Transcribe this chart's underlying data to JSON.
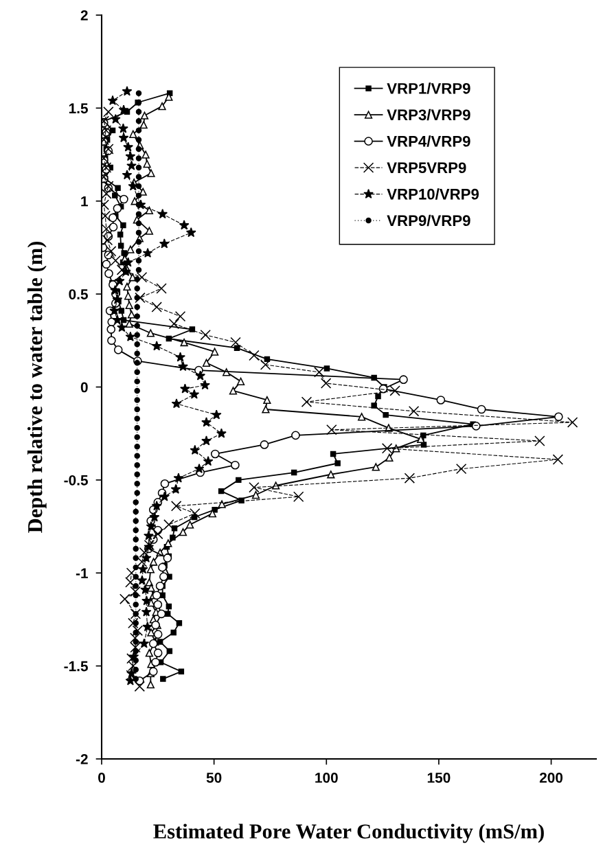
{
  "chart_data": {
    "type": "line",
    "xlabel": "Estimated Pore Water Conductivity (mS/m)",
    "ylabel": "Depth relative to water table (m)",
    "xlim": [
      0,
      220
    ],
    "xticks": [
      0,
      50,
      100,
      150,
      200
    ],
    "ylim": [
      -2,
      2
    ],
    "yticks": [
      -2,
      -1.5,
      -1,
      -0.5,
      0,
      0.5,
      1,
      1.5,
      2
    ],
    "legend": "top right",
    "series": [
      {
        "name": "VRP1/VRP9",
        "color": "#000000",
        "marker": "square",
        "line_style": "solid",
        "x": [
          30.3,
          16.1,
          11.3,
          1.1,
          4.9,
          2.5,
          2.1,
          1.6,
          3.9,
          1.6,
          7.2,
          5.9,
          8.6,
          6.2,
          9.6,
          8.3,
          8.6,
          10.0,
          9.5,
          10.8,
          4.7,
          7,
          7.5,
          8.8,
          9.8,
          40.3,
          29.9,
          60.2,
          73.6,
          100.2,
          121.2,
          125.7,
          123,
          121.2,
          126.4,
          165.2,
          143.1,
          143.3,
          103,
          105,
          85.6,
          60.9,
          53.2,
          62.2,
          50.3,
          41.3,
          32.4,
          31.6,
          29,
          29.9,
          28,
          30.1,
          27.1,
          27.1,
          29.9,
          29.4,
          34.5,
          32,
          26,
          30.2,
          26.3,
          35.4,
          27.3
        ],
        "values": [
          1.58,
          1.53,
          1.48,
          1.43,
          1.38,
          1.33,
          1.28,
          1.23,
          1.18,
          1.12,
          1.07,
          1.03,
          0.97,
          0.92,
          0.87,
          0.82,
          0.76,
          0.72,
          0.67,
          0.62,
          0.56,
          0.51,
          0.46,
          0.41,
          0.36,
          0.31,
          0.26,
          0.21,
          0.15,
          0.1,
          0.05,
          0.0,
          -0.05,
          -0.1,
          -0.15,
          -0.2,
          -0.26,
          -0.31,
          -0.36,
          -0.41,
          -0.46,
          -0.5,
          -0.56,
          -0.61,
          -0.66,
          -0.7,
          -0.76,
          -0.81,
          -0.86,
          -0.91,
          -0.96,
          -1.02,
          -1.07,
          -1.12,
          -1.18,
          -1.22,
          -1.27,
          -1.32,
          -1.37,
          -1.42,
          -1.48,
          -1.53,
          -1.57
        ]
      },
      {
        "name": "VRP3/VRP9",
        "color": "#000000",
        "marker": "triangle",
        "line_style": "solid",
        "x": [
          29.9,
          26.9,
          19.1,
          18.7,
          14.0,
          17,
          19.6,
          20.2,
          22.0,
          14.4,
          18.4,
          14.7,
          21.2,
          15.7,
          21.2,
          16.9,
          12.8,
          10.3,
          11,
          13.8,
          11.3,
          11.8,
          12.3,
          13.3,
          12.3,
          21.8,
          36.7,
          50.3,
          46.6,
          55.5,
          61.9,
          58.5,
          73.6,
          73.0,
          115.7,
          127.7,
          142,
          131,
          128,
          122,
          102,
          77.5,
          68.6,
          53.5,
          49.3,
          39.3,
          36.2,
          29.6,
          26,
          23.1,
          21.8,
          21.2,
          22,
          23,
          22,
          24.2,
          23,
          24.8,
          22,
          23.8,
          21.2,
          22,
          21.8,
          21.8
        ],
        "values": [
          1.56,
          1.51,
          1.46,
          1.41,
          1.36,
          1.3,
          1.25,
          1.2,
          1.15,
          1.1,
          1.05,
          1.0,
          0.95,
          0.9,
          0.84,
          0.8,
          0.74,
          0.69,
          0.64,
          0.59,
          0.54,
          0.49,
          0.44,
          0.39,
          0.34,
          0.29,
          0.24,
          0.19,
          0.13,
          0.08,
          0.03,
          -0.02,
          -0.07,
          -0.12,
          -0.16,
          -0.22,
          -0.28,
          -0.33,
          -0.38,
          -0.43,
          -0.47,
          -0.53,
          -0.58,
          -0.63,
          -0.68,
          -0.74,
          -0.78,
          -0.84,
          -0.89,
          -0.94,
          -0.98,
          -1.05,
          -1.08,
          -1.12,
          -1.16,
          -1.21,
          -1.25,
          -1.28,
          -1.32,
          -1.37,
          -1.43,
          -1.49,
          -1.54,
          -1.6
        ]
      },
      {
        "name": "VRP4/VRP9",
        "color": "#000000",
        "marker": "circle",
        "line_style": "solid",
        "x": [
          1,
          2,
          1,
          3,
          1,
          2,
          1,
          3,
          9.9,
          7,
          5,
          5.2,
          3,
          0.6,
          3,
          2.1,
          3.2,
          5,
          6.2,
          6.2,
          3.7,
          4.5,
          4.2,
          4.4,
          7.4,
          16,
          43.2,
          134.3,
          125.3,
          150.9,
          169,
          203.3,
          166.6,
          86.3,
          72.4,
          50.5,
          59.4,
          43.9,
          28.1,
          26.9,
          25,
          23,
          21.9,
          25,
          23,
          20.9,
          29.3,
          27,
          27.6,
          26,
          24.5,
          25,
          26.6,
          24,
          25.1,
          23,
          25.1,
          24,
          23,
          16.9
        ],
        "values": [
          1.42,
          1.37,
          1.32,
          1.27,
          1.22,
          1.17,
          1.12,
          1.07,
          1.01,
          0.96,
          0.91,
          0.86,
          0.81,
          0.75,
          0.71,
          0.66,
          0.61,
          0.55,
          0.5,
          0.45,
          0.41,
          0.35,
          0.31,
          0.25,
          0.2,
          0.14,
          0.09,
          0.04,
          -0.01,
          -0.07,
          -0.12,
          -0.16,
          -0.21,
          -0.26,
          -0.31,
          -0.36,
          -0.42,
          -0.46,
          -0.52,
          -0.57,
          -0.62,
          -0.66,
          -0.72,
          -0.77,
          -0.82,
          -0.87,
          -0.92,
          -0.97,
          -1.02,
          -1.07,
          -1.12,
          -1.17,
          -1.22,
          -1.28,
          -1.33,
          -1.38,
          -1.43,
          -1.48,
          -1.53,
          -1.58
        ]
      },
      {
        "name": "VRP5VRP9",
        "color": "#000000",
        "marker": "cross",
        "line_style": "dashed",
        "x": [
          3,
          1,
          2,
          1,
          3,
          1,
          2,
          1,
          3,
          2.1,
          1,
          1.6,
          2.1,
          2.6,
          4.2,
          6.2,
          9,
          17.9,
          26.6,
          17.1,
          24.5,
          35,
          32.2,
          46.2,
          59.6,
          67.8,
          72.9,
          96.8,
          99.8,
          130.5,
          91.2,
          138.9,
          209.5,
          102.3,
          194.9,
          127,
          203,
          160,
          137,
          67.8,
          87.6,
          33.2,
          41.5,
          29.9,
          25,
          21.2,
          19,
          17.9,
          13.3,
          12.8,
          15,
          10.3,
          15.1,
          14,
          16,
          14.9,
          15,
          13.4,
          14,
          13.2,
          16.9
        ],
        "values": [
          1.48,
          1.43,
          1.38,
          1.33,
          1.28,
          1.23,
          1.18,
          1.13,
          1.08,
          1.04,
          0.98,
          0.92,
          0.85,
          0.79,
          0.73,
          0.68,
          0.63,
          0.59,
          0.53,
          0.48,
          0.43,
          0.38,
          0.34,
          0.28,
          0.24,
          0.17,
          0.12,
          0.08,
          0.02,
          -0.02,
          -0.08,
          -0.13,
          -0.19,
          -0.23,
          -0.29,
          -0.33,
          -0.39,
          -0.44,
          -0.49,
          -0.54,
          -0.59,
          -0.64,
          -0.68,
          -0.74,
          -0.79,
          -0.85,
          -0.89,
          -0.94,
          -1.0,
          -1.05,
          -1.1,
          -1.14,
          -1.22,
          -1.27,
          -1.31,
          -1.35,
          -1.4,
          -1.46,
          -1.5,
          -1.55,
          -1.61
        ]
      },
      {
        "name": "VRP10/VRP9",
        "color": "#000000",
        "marker": "star",
        "line_style": "dashed",
        "x": [
          11.3,
          4.9,
          9.8,
          6.2,
          9.6,
          9.8,
          11.8,
          12.8,
          13.3,
          11.3,
          14,
          17.4,
          27.1,
          36.7,
          39.8,
          27.9,
          20.5,
          11.8,
          10.8,
          8,
          6,
          7,
          5.7,
          7,
          9,
          12.8,
          24.5,
          35,
          36.2,
          43.9,
          46,
          37.1,
          41.2,
          33.3,
          51.1,
          46.6,
          53.3,
          46.6,
          41.5,
          47.4,
          43.4,
          34.2,
          33,
          28,
          24.5,
          23.5,
          22,
          20.9,
          21,
          19.9,
          18.4,
          18,
          19.4,
          20,
          19.9,
          20.4,
          18.9,
          14.3,
          13.3,
          12.8
        ],
        "values": [
          1.59,
          1.54,
          1.49,
          1.44,
          1.39,
          1.34,
          1.29,
          1.24,
          1.19,
          1.14,
          1.08,
          0.98,
          0.93,
          0.87,
          0.83,
          0.77,
          0.72,
          0.67,
          0.62,
          0.57,
          0.52,
          0.47,
          0.41,
          0.36,
          0.32,
          0.27,
          0.22,
          0.16,
          0.11,
          0.06,
          0.01,
          -0.01,
          -0.04,
          -0.09,
          -0.15,
          -0.19,
          -0.25,
          -0.29,
          -0.34,
          -0.4,
          -0.44,
          -0.49,
          -0.55,
          -0.59,
          -0.64,
          -0.7,
          -0.75,
          -0.8,
          -0.86,
          -0.92,
          -0.98,
          -1.04,
          -1.09,
          -1.15,
          -1.21,
          -1.29,
          -1.38,
          -1.45,
          -1.54,
          -1.58
        ]
      },
      {
        "name": "VRP9/VRP9",
        "color": "#000000",
        "marker": "circle",
        "line_style": "dotted",
        "x": [
          16.5,
          16.5,
          16.5,
          16.5,
          16.5,
          16.5,
          16.5,
          16.5,
          16.5,
          16.5,
          16.5,
          16.5,
          16.5,
          16.5,
          16.5,
          16.5,
          16.5,
          16.5,
          16.5,
          16.5,
          15.8,
          15.8,
          15.8,
          15.8,
          15.8,
          15.8,
          15.8,
          15.8,
          15.8,
          15.8,
          15.8,
          15.8,
          15.8,
          15.8,
          15.8,
          15.8,
          15.8,
          15.8,
          15.8,
          15.8,
          15.8,
          15.8,
          15.8,
          15.8,
          15.2,
          15.2,
          15.2,
          15.2,
          15.2,
          15.2,
          15.2,
          15.2,
          15.2,
          15.2,
          15.2,
          15.2,
          15.2,
          15.2,
          15.2,
          15.2,
          15.2,
          15.2,
          15.2,
          15.2
        ],
        "values": [
          1.58,
          1.53,
          1.48,
          1.43,
          1.38,
          1.33,
          1.28,
          1.23,
          1.18,
          1.13,
          1.08,
          1.03,
          0.98,
          0.93,
          0.88,
          0.83,
          0.78,
          0.73,
          0.68,
          0.63,
          0.58,
          0.53,
          0.48,
          0.43,
          0.38,
          0.33,
          0.28,
          0.23,
          0.18,
          0.13,
          0.08,
          0.03,
          -0.02,
          -0.07,
          -0.12,
          -0.17,
          -0.22,
          -0.27,
          -0.32,
          -0.37,
          -0.42,
          -0.47,
          -0.52,
          -0.57,
          -0.62,
          -0.67,
          -0.72,
          -0.77,
          -0.82,
          -0.87,
          -0.92,
          -0.97,
          -1.02,
          -1.07,
          -1.12,
          -1.17,
          -1.22,
          -1.27,
          -1.32,
          -1.37,
          -1.42,
          -1.47,
          -1.52,
          -1.57
        ]
      }
    ]
  }
}
